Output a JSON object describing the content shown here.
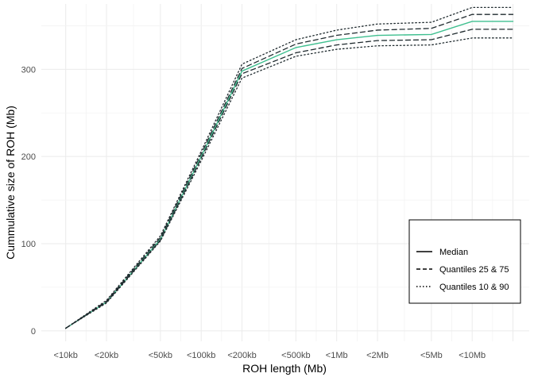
{
  "chart_data": {
    "type": "line",
    "xlabel": "ROH length (Mb)",
    "ylabel": "Cummulative size of ROH (Mb)",
    "categories": [
      "<10kb",
      "<20kb",
      "<50kb",
      "<100kb",
      "<200kb",
      "<500kb",
      "<1Mb",
      "<2Mb",
      "<5Mb",
      "<10Mb"
    ],
    "x": [
      0.01,
      0.02,
      0.05,
      0.1,
      0.2,
      0.5,
      1,
      2,
      5,
      10,
      20
    ],
    "x_scale": "log",
    "y_ticks": [
      0,
      100,
      200,
      300
    ],
    "ylim": [
      -12,
      375
    ],
    "grid": true,
    "legend_position": "bottom-right",
    "series": [
      {
        "name": "Median",
        "linestyle": "solid",
        "color": "#3fbf8f",
        "values": [
          3,
          33,
          105,
          200,
          298,
          325,
          334,
          339,
          340,
          355,
          355
        ]
      },
      {
        "name": "Quantiles 25 & 75",
        "linestyle": "dashed",
        "color": "#1f2a2e",
        "values": [
          3,
          33,
          104,
          198,
          295,
          319,
          328,
          333,
          334,
          346,
          346
        ]
      },
      {
        "name": "Quantiles 25 & 75",
        "linestyle": "dashed",
        "color": "#1f2a2e",
        "values": [
          3,
          34,
          107,
          203,
          301,
          329,
          339,
          345,
          347,
          363,
          363
        ]
      },
      {
        "name": "Quantiles 10 & 90",
        "linestyle": "dotted",
        "color": "#1f2a2e",
        "values": [
          3,
          32,
          103,
          195,
          290,
          315,
          323,
          327,
          328,
          336,
          336
        ]
      },
      {
        "name": "Quantiles 10 & 90",
        "linestyle": "dotted",
        "color": "#1f2a2e",
        "values": [
          3,
          35,
          109,
          206,
          306,
          334,
          345,
          352,
          354,
          371,
          371
        ]
      }
    ],
    "legend": [
      {
        "label": "Median",
        "linestyle": "solid"
      },
      {
        "label": "Quantiles 25 & 75",
        "linestyle": "dashed"
      },
      {
        "label": "Quantiles 10 & 90",
        "linestyle": "dotted"
      }
    ]
  }
}
